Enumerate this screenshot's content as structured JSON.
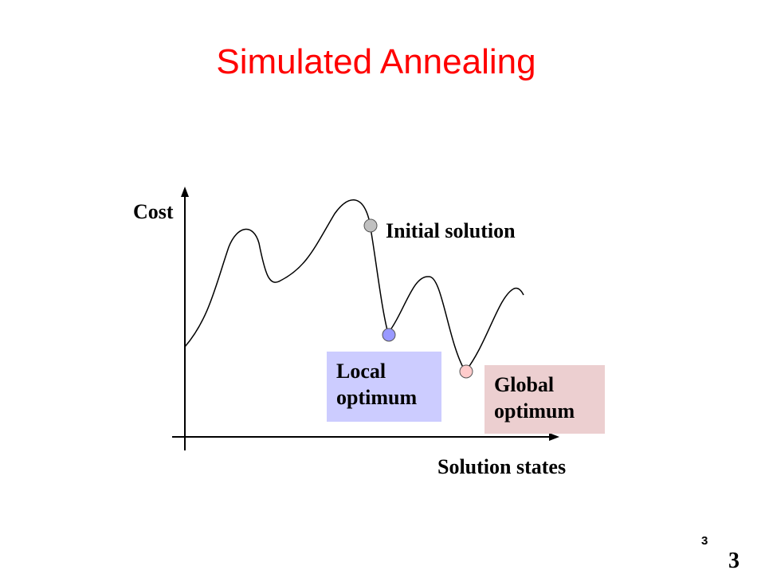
{
  "slide": {
    "title": "Simulated Annealing",
    "page_number_small": "3",
    "page_number_large": "3"
  },
  "diagram": {
    "y_axis_label": "Cost",
    "x_axis_label": "Solution states",
    "initial_label": "Initial solution",
    "local_label": [
      "Local",
      "optimum"
    ],
    "global_label": [
      "Global",
      "optimum"
    ]
  },
  "colors": {
    "title": "#ff0000",
    "initial_marker": "#c0c0c0",
    "local_marker": "#9999ff",
    "local_box": "#ccccff",
    "global_marker": "#ffcccc",
    "global_box": "#eccfd0",
    "curve": "#000000"
  }
}
